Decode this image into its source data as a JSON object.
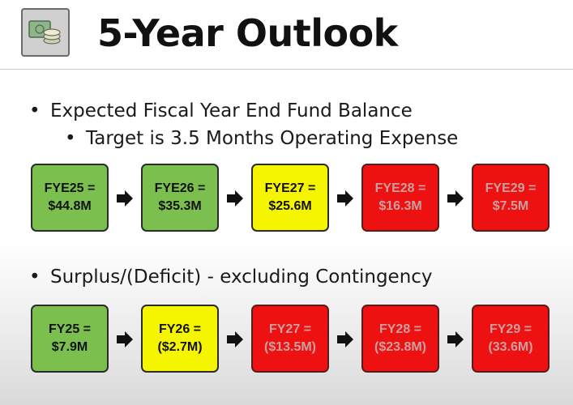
{
  "title": "5-Year Outlook",
  "icons": {
    "logo": "coins-icon",
    "arrow": "right-arrow-icon"
  },
  "bullets": {
    "fund_balance": "Expected Fiscal Year End Fund Balance",
    "target": "Target is 3.5 Months Operating Expense",
    "surplus": "Surplus/(Deficit) - excluding Contingency",
    "marker": "•"
  },
  "fund_balance": [
    {
      "label": "FYE25 =",
      "value": "$44.8M",
      "status": "green"
    },
    {
      "label": "FYE26 =",
      "value": "$35.3M",
      "status": "green"
    },
    {
      "label": "FYE27 =",
      "value": "$25.6M",
      "status": "yellow"
    },
    {
      "label": "FYE28 =",
      "value": "$16.3M",
      "status": "red"
    },
    {
      "label": "FYE29 =",
      "value": "$7.5M",
      "status": "red"
    }
  ],
  "surplus_deficit": [
    {
      "label": "FY25 =",
      "value": "$7.9M",
      "status": "green"
    },
    {
      "label": "FY26 =",
      "value": "($2.7M)",
      "status": "yellow"
    },
    {
      "label": "FY27 =",
      "value": "($13.5M)",
      "status": "red"
    },
    {
      "label": "FY28 =",
      "value": "($23.8M)",
      "status": "red"
    },
    {
      "label": "FY29 =",
      "value": "(33.6M)",
      "status": "red"
    }
  ],
  "colors": {
    "green": "#7bc04e",
    "yellow": "#f5f500",
    "red": "#ee1111"
  }
}
